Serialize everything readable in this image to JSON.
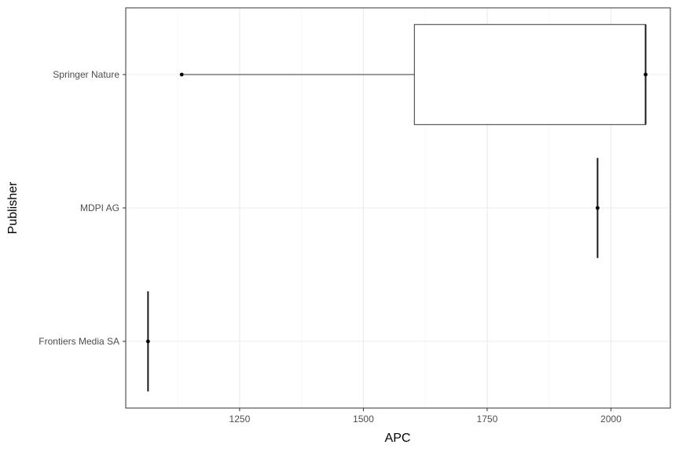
{
  "chart_data": {
    "type": "boxplot",
    "orientation": "horizontal",
    "xlabel": "APC",
    "ylabel": "Publisher",
    "xlim": [
      1020,
      2120
    ],
    "x_ticks": [
      1250,
      1500,
      1750,
      2000
    ],
    "x_tick_labels": [
      "1250",
      "1500",
      "1750",
      "2000"
    ],
    "grid": true,
    "categories": [
      "Springer Nature",
      "MDPI AG",
      "Frontiers Media SA"
    ],
    "series": [
      {
        "category": "Springer Nature",
        "min": 1133,
        "q1": 1603,
        "median": 2070,
        "q3": 2070,
        "max": 2070,
        "points": [
          1133,
          2070
        ]
      },
      {
        "category": "MDPI AG",
        "min": 1973,
        "q1": 1973,
        "median": 1973,
        "q3": 1973,
        "max": 1973,
        "points": [
          1973
        ]
      },
      {
        "category": "Frontiers Media SA",
        "min": 1065,
        "q1": 1065,
        "median": 1065,
        "q3": 1065,
        "max": 1065,
        "points": [
          1065
        ]
      }
    ]
  }
}
